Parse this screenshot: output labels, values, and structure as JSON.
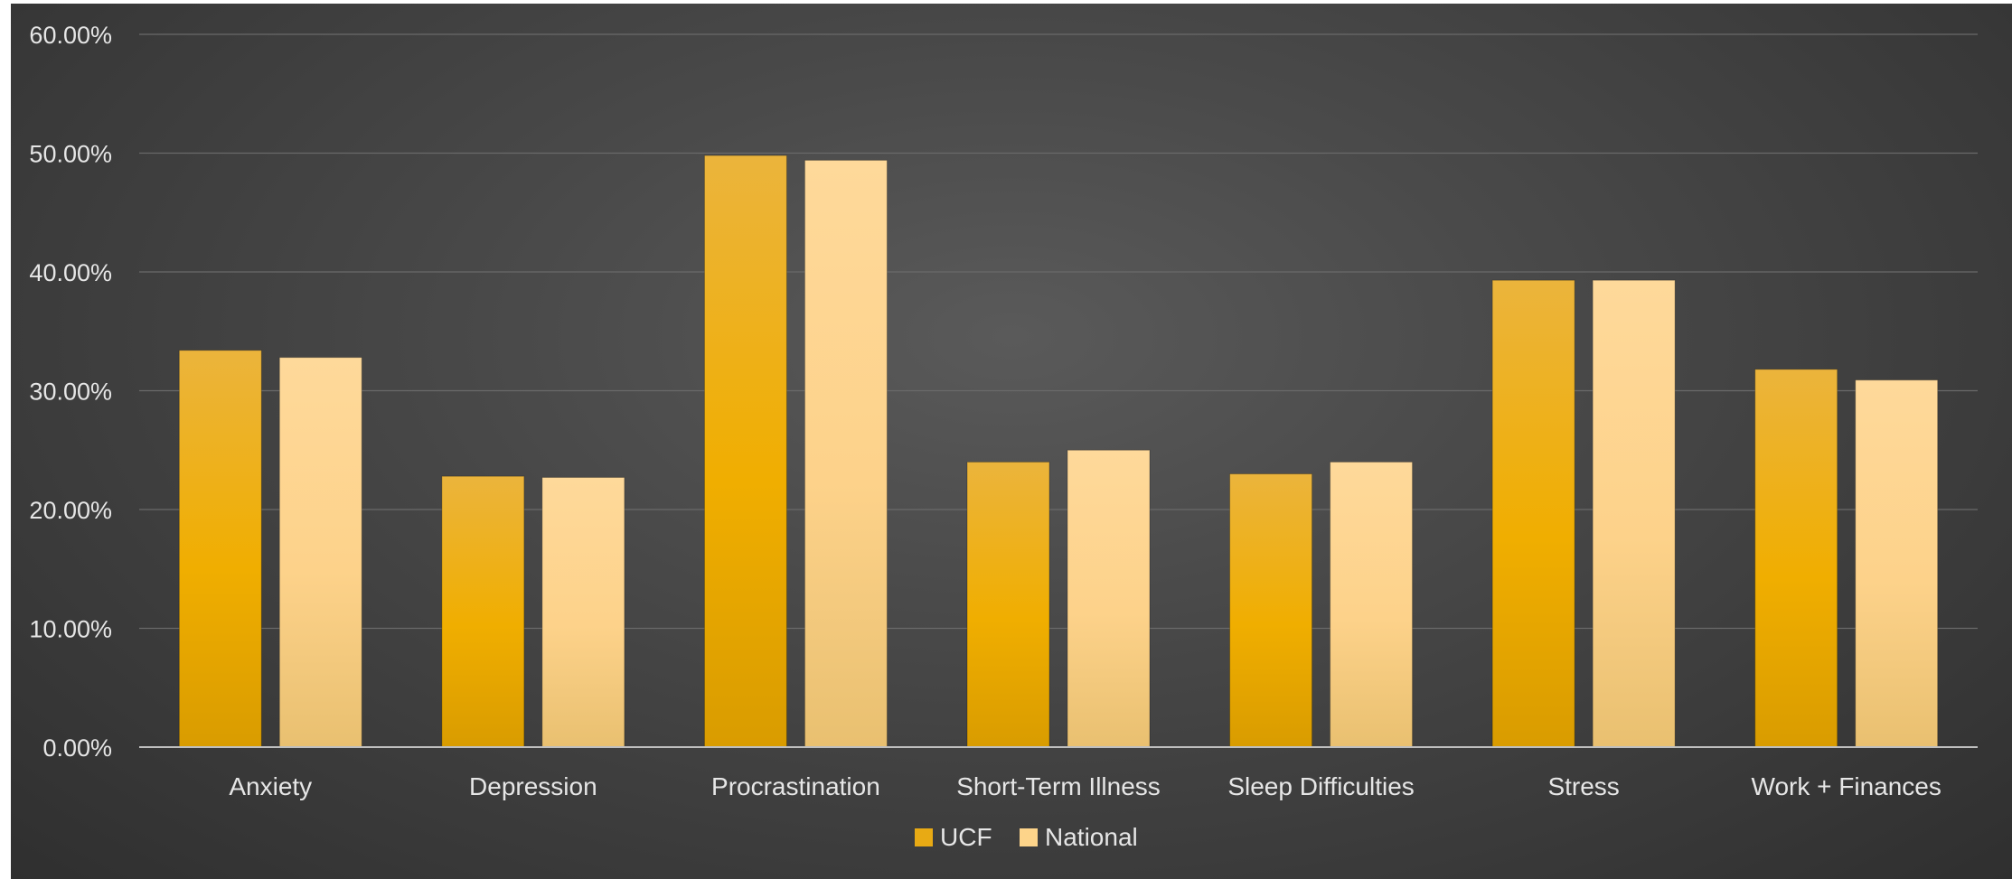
{
  "chart_data": {
    "type": "bar",
    "categories": [
      "Anxiety",
      "Depression",
      "Procrastination",
      "Short-Term Illness",
      "Sleep Difficulties",
      "Stress",
      "Work + Finances"
    ],
    "series": [
      {
        "name": "UCF",
        "values": [
          33.4,
          22.8,
          49.8,
          24.0,
          23.0,
          39.3,
          31.8
        ],
        "color": "#e8aa14"
      },
      {
        "name": "National",
        "values": [
          32.8,
          22.7,
          49.4,
          25.0,
          24.0,
          39.3,
          30.9
        ],
        "color": "#fdd48a"
      }
    ],
    "title": "",
    "xlabel": "",
    "ylabel": "",
    "ylim": [
      0,
      60
    ],
    "yticks": [
      "0.00%",
      "10.00%",
      "20.00%",
      "30.00%",
      "40.00%",
      "50.00%",
      "60.00%"
    ],
    "grid": true,
    "legend_position": "bottom"
  }
}
